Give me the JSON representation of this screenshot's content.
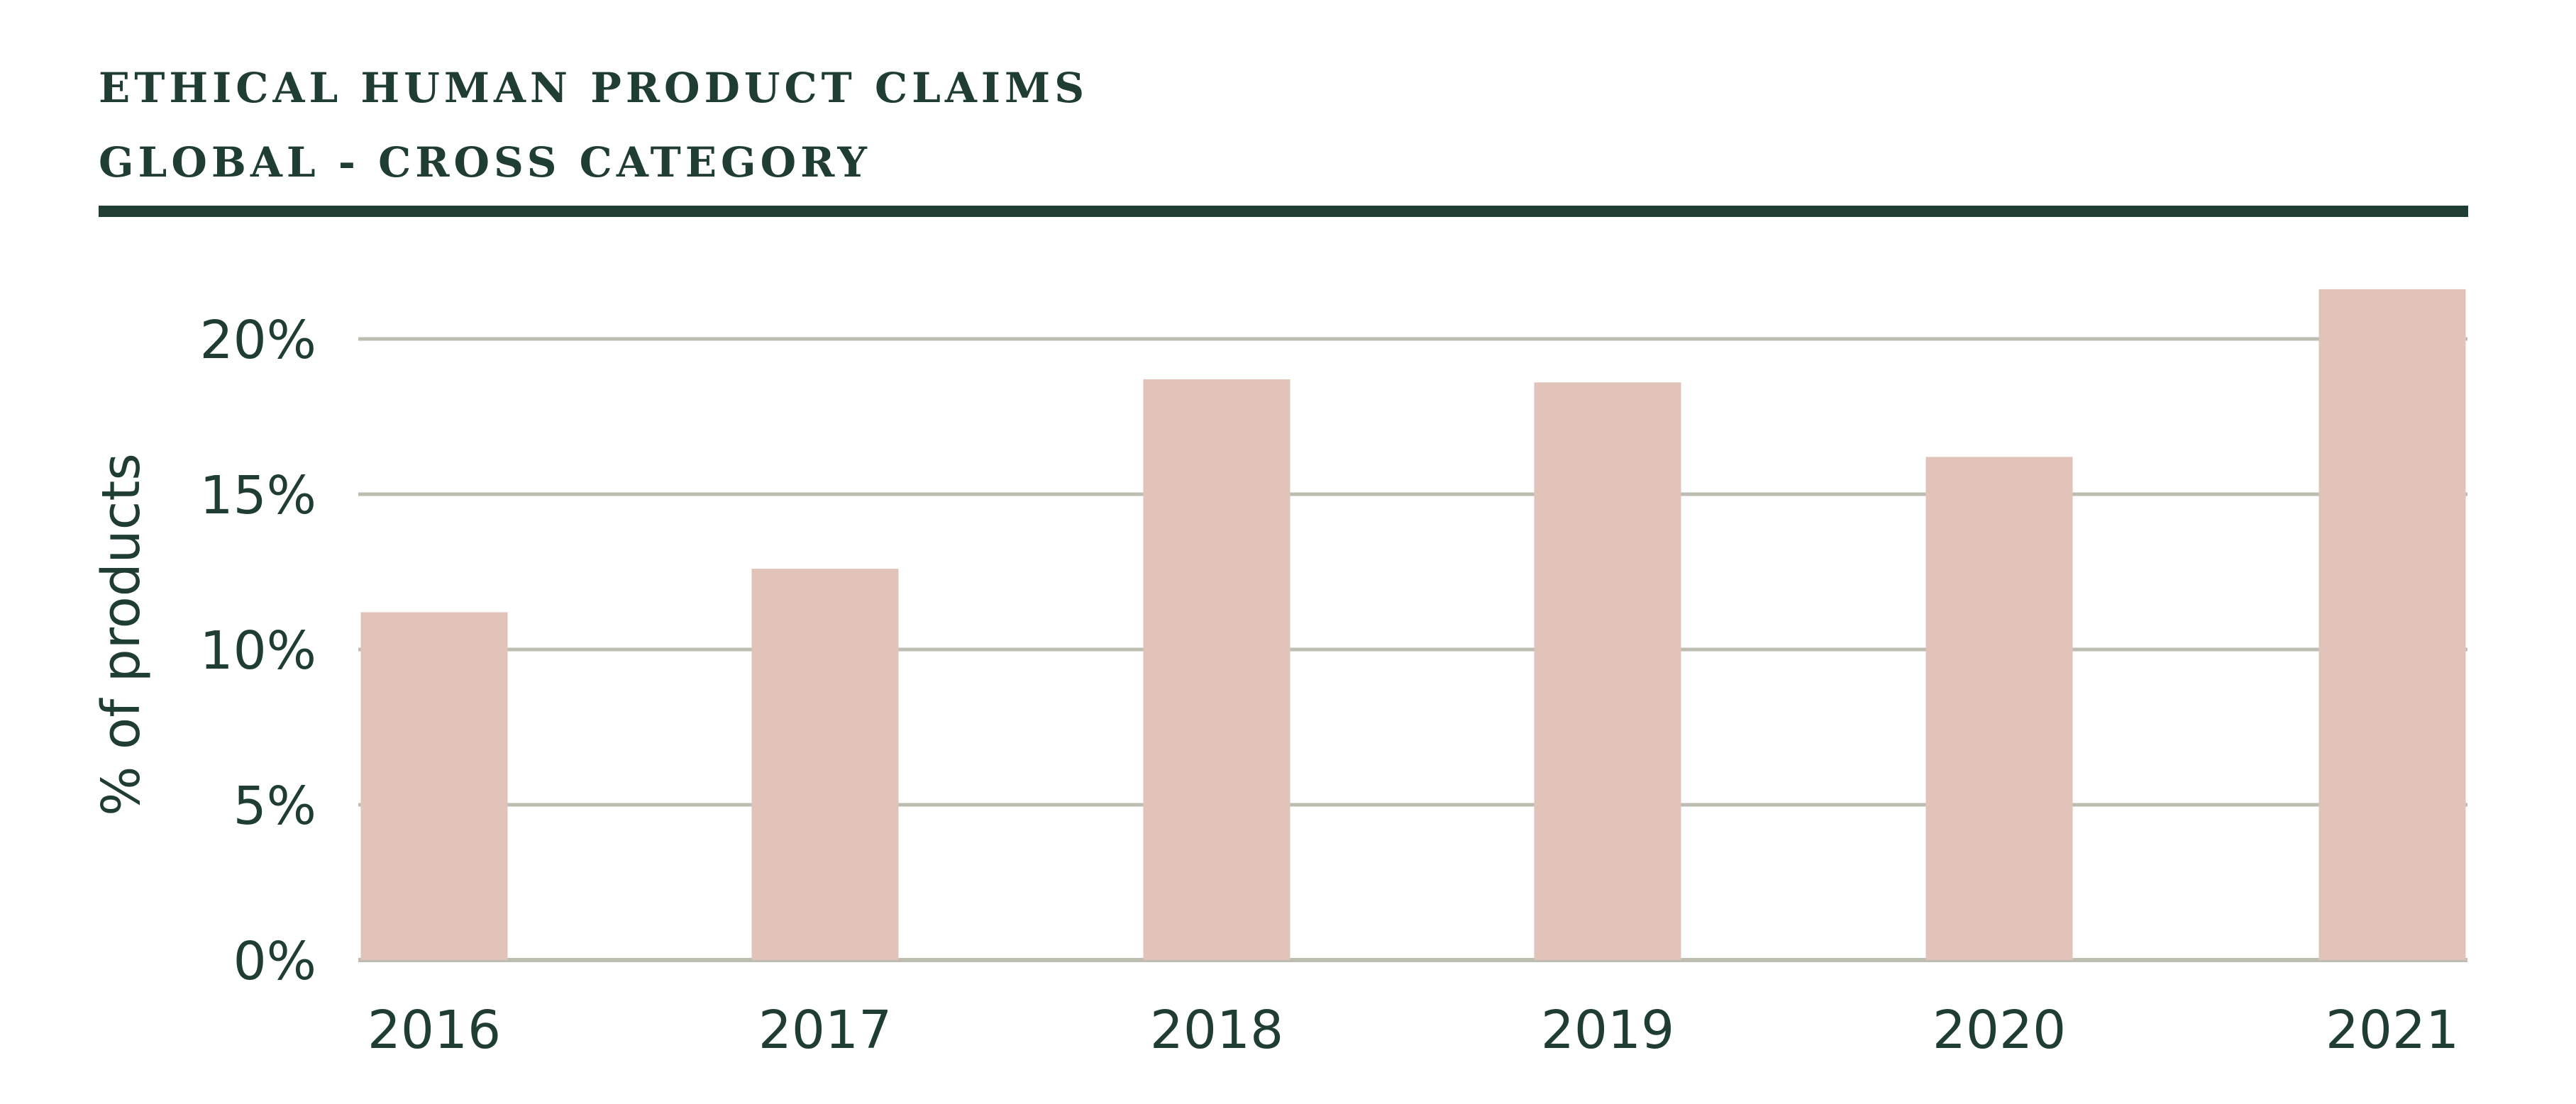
{
  "header": {
    "title": "ETHICAL HUMAN PRODUCT CLAIMS",
    "subtitle": "GLOBAL - CROSS CATEGORY"
  },
  "colors": {
    "title": "#1f3d33",
    "rule": "#1f3d33",
    "bar": "#e2c3b9",
    "grid": "#bdbdb2",
    "text": "#1f3d33"
  },
  "chart_data": {
    "type": "bar",
    "title": "ETHICAL HUMAN PRODUCT CLAIMS",
    "subtitle": "GLOBAL - CROSS CATEGORY",
    "xlabel": "",
    "ylabel": "% of products",
    "categories": [
      "2016",
      "2017",
      "2018",
      "2019",
      "2020",
      "2021"
    ],
    "series": [
      {
        "values": [
          11.2,
          12.6,
          18.7,
          18.6,
          16.2,
          21.6
        ]
      }
    ],
    "ylim": [
      0,
      20
    ],
    "yticks": [
      0,
      5,
      10,
      15,
      20
    ],
    "ytick_labels": [
      "0%",
      "5%",
      "10%",
      "15%",
      "20%"
    ],
    "grid": true,
    "legend": "none"
  }
}
